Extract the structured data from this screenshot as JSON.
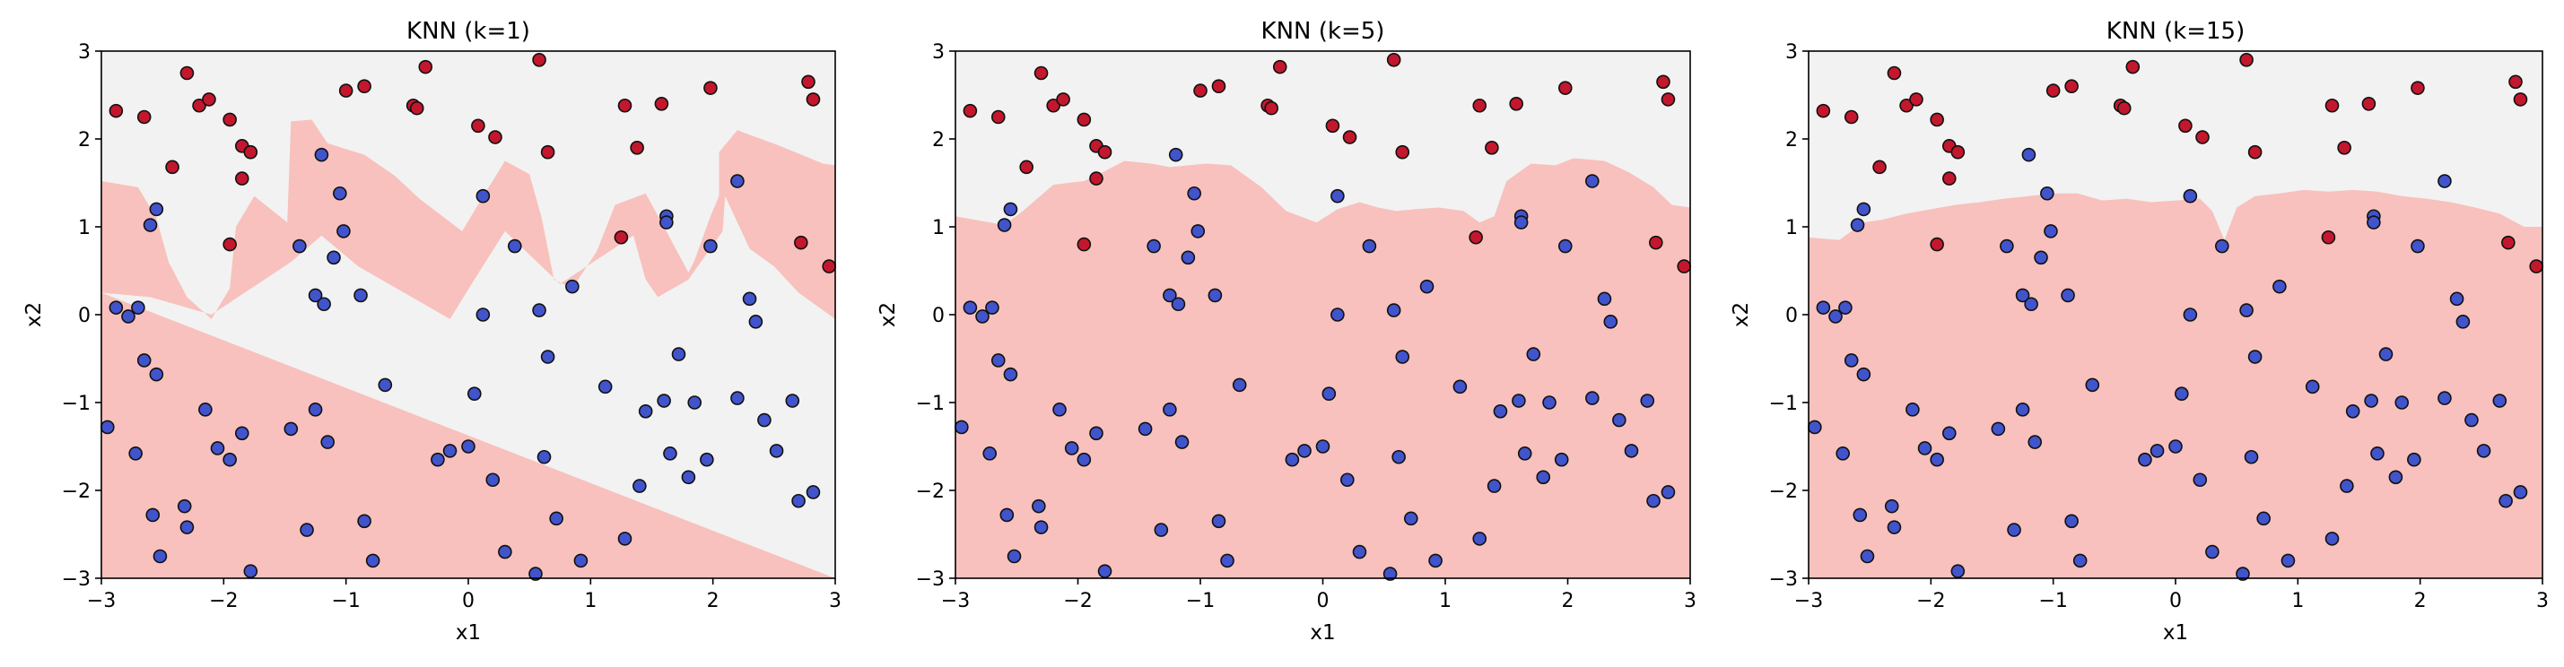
{
  "colors": {
    "region_class1": "#f2f2f2",
    "region_class0": "#f8c1bd",
    "point_class0": "#4154cc",
    "point_class1": "#c3172d",
    "point_edge": "#111111",
    "axes": "#000000"
  },
  "chart_data": [
    {
      "type": "scatter",
      "title": "KNN (k=1)",
      "xlabel": "x1",
      "ylabel": "x2",
      "xlim": [
        -3,
        3
      ],
      "ylim": [
        -3,
        3
      ],
      "xticks": [
        "−3",
        "−2",
        "−1",
        "0",
        "1",
        "2",
        "3"
      ],
      "yticks": [
        "−3",
        "−2",
        "−1",
        "0",
        "1",
        "2",
        "3"
      ],
      "grid": false,
      "boundary": [
        [
          -3,
          1.52
        ],
        [
          -2.8,
          1.5
        ],
        [
          -2.6,
          1.45
        ],
        [
          -2.5,
          1.15
        ],
        [
          -2.35,
          0.9
        ],
        [
          -2.2,
          1.28
        ],
        [
          -2.05,
          1.3
        ],
        [
          -1.98,
          1.0
        ],
        [
          -1.9,
          0.55
        ],
        [
          -1.95,
          0.4
        ],
        [
          -2.1,
          0.4
        ],
        [
          -2.2,
          0.25
        ],
        [
          -2.3,
          0.1
        ],
        [
          -2.45,
          -0.05
        ],
        [
          -2.6,
          0.2
        ],
        [
          -2.8,
          0.45
        ],
        [
          -2.95,
          0.7
        ],
        [
          -2.98,
          1.2
        ],
        [
          -3,
          1.52
        ]
      ],
      "boundary_path": [
        [
          -3,
          1.52
        ],
        [
          -2.7,
          1.45
        ],
        [
          -2.55,
          1.1
        ],
        [
          -2.45,
          0.6
        ],
        [
          -2.3,
          0.2
        ],
        [
          -2.1,
          -0.05
        ],
        [
          -1.95,
          0.3
        ],
        [
          -1.9,
          1.0
        ],
        [
          -1.75,
          1.35
        ],
        [
          -1.48,
          1.05
        ],
        [
          -1.45,
          2.2
        ],
        [
          -1.28,
          2.22
        ],
        [
          -1.15,
          1.95
        ],
        [
          -0.85,
          1.82
        ],
        [
          -0.6,
          1.58
        ],
        [
          -0.4,
          1.32
        ],
        [
          -0.05,
          0.95
        ],
        [
          0.1,
          1.3
        ],
        [
          0.3,
          1.75
        ],
        [
          0.5,
          1.6
        ],
        [
          0.6,
          1.1
        ],
        [
          0.7,
          0.4
        ],
        [
          0.85,
          0.3
        ],
        [
          1.05,
          0.72
        ],
        [
          1.2,
          1.25
        ],
        [
          1.45,
          1.38
        ],
        [
          1.6,
          1.0
        ],
        [
          1.8,
          0.48
        ],
        [
          1.85,
          0.62
        ],
        [
          1.98,
          1.12
        ],
        [
          2.05,
          1.35
        ],
        [
          2.05,
          1.85
        ],
        [
          2.2,
          2.1
        ],
        [
          2.55,
          1.92
        ],
        [
          2.9,
          1.72
        ],
        [
          3,
          1.7
        ],
        [
          3,
          -0.05
        ],
        [
          2.7,
          0.25
        ],
        [
          2.5,
          0.55
        ],
        [
          2.3,
          0.75
        ],
        [
          2.1,
          1.35
        ],
        [
          2.08,
          0.95
        ],
        [
          1.8,
          0.4
        ],
        [
          1.55,
          0.2
        ],
        [
          1.45,
          0.4
        ],
        [
          1.35,
          0.9
        ],
        [
          0.75,
          0.35
        ],
        [
          0.3,
          0.95
        ],
        [
          0.05,
          0.4
        ],
        [
          -0.15,
          -0.05
        ],
        [
          -0.9,
          0.55
        ],
        [
          -1.2,
          0.9
        ],
        [
          -1.45,
          0.6
        ],
        [
          -2.1,
          0.0
        ],
        [
          -2.6,
          0.2
        ],
        [
          -3,
          0.25
        ]
      ],
      "regions": "class0_below_boundary",
      "points": [
        [
          -2.88,
          0.08,
          0
        ],
        [
          -2.7,
          0.08,
          0
        ],
        [
          -2.78,
          -0.02,
          0
        ],
        [
          -2.65,
          -0.52,
          0
        ],
        [
          -2.55,
          -0.68,
          0
        ],
        [
          -2.95,
          -1.28,
          0
        ],
        [
          -2.72,
          -1.58,
          0
        ],
        [
          -2.58,
          -2.28,
          0
        ],
        [
          -2.52,
          -2.75,
          0
        ],
        [
          -2.32,
          -2.18,
          0
        ],
        [
          -2.3,
          -2.42,
          0
        ],
        [
          -2.15,
          -1.08,
          0
        ],
        [
          -2.05,
          -1.52,
          0
        ],
        [
          -1.95,
          -1.65,
          0
        ],
        [
          -1.85,
          -1.35,
          0
        ],
        [
          -1.78,
          -2.92,
          0
        ],
        [
          -1.45,
          -1.3,
          0
        ],
        [
          -1.32,
          -2.45,
          0
        ],
        [
          -1.25,
          -1.08,
          0
        ],
        [
          -1.15,
          -1.45,
          0
        ],
        [
          -0.85,
          -2.35,
          0
        ],
        [
          -0.78,
          -2.8,
          0
        ],
        [
          -0.68,
          -0.8,
          0
        ],
        [
          -0.25,
          -1.65,
          0
        ],
        [
          -0.15,
          -1.55,
          0
        ],
        [
          0.0,
          -1.5,
          0
        ],
        [
          0.05,
          -0.9,
          0
        ],
        [
          0.2,
          -1.88,
          0
        ],
        [
          0.3,
          -2.7,
          0
        ],
        [
          0.55,
          -2.95,
          0
        ],
        [
          0.62,
          -1.62,
          0
        ],
        [
          0.72,
          -2.32,
          0
        ],
        [
          0.92,
          -2.8,
          0
        ],
        [
          1.12,
          -0.82,
          0
        ],
        [
          1.28,
          -2.55,
          0
        ],
        [
          1.4,
          -1.95,
          0
        ],
        [
          1.45,
          -1.1,
          0
        ],
        [
          1.6,
          -0.98,
          0
        ],
        [
          1.65,
          -1.58,
          0
        ],
        [
          1.72,
          -0.45,
          0
        ],
        [
          1.8,
          -1.85,
          0
        ],
        [
          1.85,
          -1.0,
          0
        ],
        [
          1.95,
          -1.65,
          0
        ],
        [
          2.2,
          -0.95,
          0
        ],
        [
          2.3,
          0.18,
          0
        ],
        [
          2.35,
          -0.08,
          0
        ],
        [
          2.42,
          -1.2,
          0
        ],
        [
          2.52,
          -1.55,
          0
        ],
        [
          2.65,
          -0.98,
          0
        ],
        [
          2.7,
          -2.12,
          0
        ],
        [
          2.82,
          -2.02,
          0
        ],
        [
          -2.6,
          1.02,
          0
        ],
        [
          -2.55,
          1.2,
          0
        ],
        [
          -1.2,
          1.82,
          0
        ],
        [
          -1.05,
          1.38,
          0
        ],
        [
          -1.02,
          0.95,
          0
        ],
        [
          -1.1,
          0.65,
          0
        ],
        [
          -1.38,
          0.78,
          0
        ],
        [
          -1.25,
          0.22,
          0
        ],
        [
          -1.18,
          0.12,
          0
        ],
        [
          -0.88,
          0.22,
          0
        ],
        [
          0.12,
          1.35,
          0
        ],
        [
          0.12,
          0.0,
          0
        ],
        [
          0.38,
          0.78,
          0
        ],
        [
          0.58,
          0.05,
          0
        ],
        [
          0.65,
          -0.48,
          0
        ],
        [
          0.85,
          0.32,
          0
        ],
        [
          1.62,
          1.12,
          0
        ],
        [
          1.62,
          1.05,
          0
        ],
        [
          1.98,
          0.78,
          0
        ],
        [
          2.2,
          1.52,
          0
        ],
        [
          -2.88,
          2.32,
          1
        ],
        [
          -2.65,
          2.25,
          1
        ],
        [
          -2.3,
          2.75,
          1
        ],
        [
          -2.2,
          2.38,
          1
        ],
        [
          -2.12,
          2.45,
          1
        ],
        [
          -2.42,
          1.68,
          1
        ],
        [
          -1.95,
          2.22,
          1
        ],
        [
          -1.85,
          1.55,
          1
        ],
        [
          -1.85,
          1.92,
          1
        ],
        [
          -1.78,
          1.85,
          1
        ],
        [
          -1.95,
          0.8,
          1
        ],
        [
          -1.0,
          2.55,
          1
        ],
        [
          -0.85,
          2.6,
          1
        ],
        [
          -0.45,
          2.38,
          1
        ],
        [
          -0.42,
          2.35,
          1
        ],
        [
          -0.35,
          2.82,
          1
        ],
        [
          0.08,
          2.15,
          1
        ],
        [
          0.22,
          2.02,
          1
        ],
        [
          0.58,
          2.9,
          1
        ],
        [
          0.65,
          1.85,
          1
        ],
        [
          1.28,
          2.38,
          1
        ],
        [
          1.38,
          1.9,
          1
        ],
        [
          1.58,
          2.4,
          1
        ],
        [
          1.98,
          2.58,
          1
        ],
        [
          1.25,
          0.88,
          1
        ],
        [
          2.72,
          0.82,
          1
        ],
        [
          2.78,
          2.65,
          1
        ],
        [
          2.82,
          2.45,
          1
        ],
        [
          2.95,
          0.55,
          1
        ]
      ]
    },
    {
      "type": "scatter",
      "title": "KNN (k=5)",
      "xlabel": "x1",
      "ylabel": "x2",
      "xlim": [
        -3,
        3
      ],
      "ylim": [
        -3,
        3
      ],
      "xticks": [
        "−3",
        "−2",
        "−1",
        "0",
        "1",
        "2",
        "3"
      ],
      "yticks": [
        "−3",
        "−2",
        "−1",
        "0",
        "1",
        "2",
        "3"
      ],
      "grid": false,
      "boundary_path": [
        [
          -3,
          1.12
        ],
        [
          -2.6,
          1.02
        ],
        [
          -2.45,
          1.18
        ],
        [
          -2.2,
          1.48
        ],
        [
          -1.95,
          1.52
        ],
        [
          -1.8,
          1.62
        ],
        [
          -1.62,
          1.75
        ],
        [
          -1.4,
          1.72
        ],
        [
          -1.25,
          1.68
        ],
        [
          -0.95,
          1.72
        ],
        [
          -0.75,
          1.7
        ],
        [
          -0.5,
          1.45
        ],
        [
          -0.3,
          1.18
        ],
        [
          -0.05,
          1.05
        ],
        [
          0.12,
          1.2
        ],
        [
          0.3,
          1.28
        ],
        [
          0.45,
          1.22
        ],
        [
          0.6,
          1.18
        ],
        [
          0.75,
          1.2
        ],
        [
          0.95,
          1.22
        ],
        [
          1.15,
          1.18
        ],
        [
          1.28,
          1.05
        ],
        [
          1.4,
          1.12
        ],
        [
          1.5,
          1.52
        ],
        [
          1.7,
          1.72
        ],
        [
          1.9,
          1.7
        ],
        [
          2.05,
          1.78
        ],
        [
          2.3,
          1.75
        ],
        [
          2.5,
          1.62
        ],
        [
          2.7,
          1.45
        ],
        [
          2.85,
          1.25
        ],
        [
          3,
          1.22
        ]
      ],
      "regions": "class0_below_boundary",
      "points": "same_as_k1"
    },
    {
      "type": "scatter",
      "title": "KNN (k=15)",
      "xlabel": "x1",
      "ylabel": "x2",
      "xlim": [
        -3,
        3
      ],
      "ylim": [
        -3,
        3
      ],
      "xticks": [
        "−3",
        "−2",
        "−1",
        "0",
        "1",
        "2",
        "3"
      ],
      "yticks": [
        "−3",
        "−2",
        "−1",
        "0",
        "1",
        "2",
        "3"
      ],
      "grid": false,
      "boundary_path": [
        [
          -3,
          0.88
        ],
        [
          -2.75,
          0.85
        ],
        [
          -2.55,
          1.05
        ],
        [
          -2.4,
          1.08
        ],
        [
          -2.2,
          1.15
        ],
        [
          -2.0,
          1.2
        ],
        [
          -1.8,
          1.25
        ],
        [
          -1.6,
          1.28
        ],
        [
          -1.4,
          1.32
        ],
        [
          -1.2,
          1.35
        ],
        [
          -1.0,
          1.38
        ],
        [
          -0.8,
          1.38
        ],
        [
          -0.6,
          1.3
        ],
        [
          -0.4,
          1.32
        ],
        [
          -0.2,
          1.28
        ],
        [
          0.0,
          1.3
        ],
        [
          0.2,
          1.32
        ],
        [
          0.3,
          1.18
        ],
        [
          0.4,
          0.85
        ],
        [
          0.5,
          1.22
        ],
        [
          0.65,
          1.35
        ],
        [
          0.85,
          1.38
        ],
        [
          1.05,
          1.42
        ],
        [
          1.25,
          1.4
        ],
        [
          1.45,
          1.42
        ],
        [
          1.65,
          1.4
        ],
        [
          1.85,
          1.35
        ],
        [
          2.05,
          1.32
        ],
        [
          2.25,
          1.28
        ],
        [
          2.45,
          1.22
        ],
        [
          2.65,
          1.15
        ],
        [
          2.85,
          1.0
        ],
        [
          3,
          1.0
        ]
      ],
      "regions": "class0_below_boundary",
      "points": "same_as_k1"
    }
  ]
}
